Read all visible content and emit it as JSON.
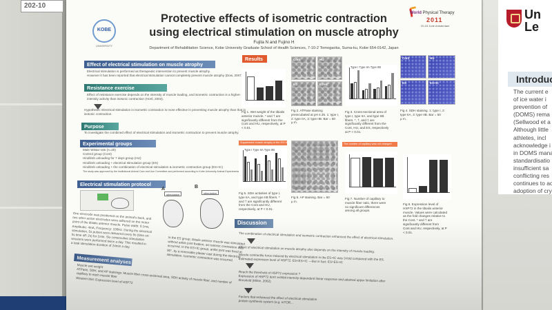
{
  "environment": {
    "corner_tag": "202-10",
    "right_poster": {
      "uni_name_lines": [
        "Un",
        "Le"
      ],
      "intro_heading": "Introduc",
      "intro_lines": [
        "The current e",
        "of ice water i",
        "prevention of",
        "(DOMS) rema",
        "(Sellwood et a",
        "Although little",
        "athletes, incl",
        "acknowledge i",
        "in DOMS mana",
        "standardisatio",
        "insufficient sa",
        "conflicting res",
        "continues to ac",
        "adoption of cry"
      ]
    }
  },
  "poster": {
    "title_line1": "Protective effects of isometric contraction",
    "title_line2": "using electrical stimulation on muscle atrophy",
    "authors": "Fujita N and Fujino H",
    "affiliation": "Department of Rehabilitation Science, Kobe University Graduate School of Health Sciences, 7-10-2 Tomogaoka, Suma-ku, Kobe 654-0142, Japan",
    "kobe_logo": {
      "text": "KOBE",
      "sub": "UNIVERSITY"
    },
    "wpt_logo": {
      "line1_bold": "World",
      "line1_rest": " Physical Therapy",
      "line2": "2011",
      "line3": "20-23 June Amsterdam"
    },
    "sections": {
      "effect_es": {
        "heading": "Effect of electrical stimulation on muscle atrophy",
        "lines": [
          "Electrical stimulation is performed as therapeutic intervention to prevent muscle atrophy.",
          "However it has been reported that electrical stimulation cannot completely prevent muscle atrophy (Dow, 2007)."
        ]
      },
      "resistance": {
        "heading": "Resistance exercise",
        "lines": [
          "Effect of resistance exercise depends on the intensity of muscle loading, and isometric contraction is a higher-",
          "intensity activity than isotonic contraction (Hortl, 2003)."
        ],
        "hypothesis": [
          "Hypothesis: Electrical stimulation in isometric contraction is more effective in preventing muscle atrophy than that in",
          "isotonic contraction."
        ]
      },
      "purpose": {
        "heading": "Purpose",
        "lines": [
          "To investigate the combined effect of electrical stimulation and isometric contraction to prevent muscle atrophy."
        ]
      },
      "groups": {
        "heading": "Experimental groups",
        "lines": [
          "Male Wistar rats (n=20)",
          "Control group (Cont)",
          "Hindlimb unloading for 7 days group (HU)",
          "Hindlimb unloading + electrical stimulation group (ES)",
          "Hindlimb unloading + the combination of electrical stimulation & isometric contraction group (ES+IC)",
          "The study was approved by the Institutional Animal Care and Use Committee and performed according to Kobe University Animal Experimentation Regulations."
        ]
      },
      "es_protocol": {
        "heading": "Electrical stimulation protocol",
        "left_text": [
          "One electrode was positioned on the animal's back, and",
          "two other active electrodes were adhered on the motor",
          "point of the tibialis anterior muscle. Pulse width: 0.1ms,",
          "Amplitude: 4mA, Frequency: 100Hz. During the electrical",
          "stimulation, 5s pulses were delivered every 5s (time on:",
          "5s time off: 2s) for 1min. Six consecutive stimulation",
          "sessions were performed twice a day. This resulted in",
          "a total stimulation duration of 24min a day."
        ],
        "label_a": "A",
        "label_b": "B",
        "box_a": "stimulation",
        "box_b": "stimulation",
        "right_text": [
          "In the ES group, tibialis anterior muscle was stimulated",
          "without ankle joint fixation, an isotonic contraction was",
          "occurred. In the ES+IC group, ankle joint was fixed at",
          "90°, by a removable plaster cast during the electrical",
          "stimulation. Isometric contraction was occurred."
        ]
      },
      "measurement": {
        "heading": "Measurement analyses",
        "lines": [
          "Muscle wet weight",
          "ATPase, SDH, and AP stainings: Muscle fiber cross-sectional area, SDH activity of muscle fiber, and number of",
          "capillary to each muscle fiber",
          "Western blot: Expression level of HSP72"
        ]
      },
      "results": {
        "heading": "Results",
        "figs": [
          {
            "caption": [
              "Fig 1. Wet weight of the tibialis",
              "anterior muscle. * and † are",
              "significantly different from the",
              "Cont and HU, respectively, at P",
              "< 0.01."
            ]
          },
          {
            "caption": [
              "Fig 2. ATPase staining",
              "preincubated at pH 4.35. 1: type I,",
              "2: type IIA, 3: type IIB. Bar = 50",
              "μ m."
            ],
            "labels": [
              "Cont",
              "HU",
              "ES",
              "ES+IC"
            ]
          },
          {
            "caption": [
              "Fig 3. Cross-sectional area of",
              "type I, type IIA, and type IIB",
              "fibers. *, †, and ‡ are",
              "significantly different from the",
              "Cont, HU, and ES, respectively",
              "at P < 0.01."
            ],
            "legend": "Type I  Type IIA  Type IIB"
          },
          {
            "caption": [
              "Fig 4. SDH staining. 1: type I, 2:",
              "type IIA, 3: type IIB. Bar = 50",
              "μ m."
            ],
            "labels": [
              "Cont",
              "HU",
              "ES",
              "ES+IC"
            ]
          },
          {
            "caption": [
              "Fig 5. SDH activities of type I,",
              "type IIA, and type IIB fibers. *",
              "and † are significantly different",
              "from the Cont and HU,",
              "respectively, at P < 0.01."
            ],
            "legend": "Type I  Type IIA  Type IIB"
          },
          {
            "caption": [
              "Fig 6. AP staining. Bar = 50",
              "μ m."
            ]
          },
          {
            "caption": [
              "Fig 7. Number of capillary to",
              "muscle fiber ratio, there were",
              "no significant differences",
              "among all groups."
            ]
          },
          {
            "caption": [
              "Fig 8. Expression level of",
              "HSP72 in the tibialis anterior",
              "muscle. Values were calculated",
              "as the fold changes relative to",
              "the Cont. * and † are",
              "significantly different from",
              "Cont and HU, respectively, at P",
              "< 0.01."
            ]
          }
        ],
        "orange_tags": [
          "Suppressed muscle atrophy in the ES+IC group",
          "The number of capillary was not changed"
        ]
      },
      "discussion": {
        "heading": "Discussion",
        "steps": [
          [
            "The combination of electrical stimulation and isometric contraction enhanced the effect of electrical stimulation."
          ],
          [
            "Effect of electrical stimulation on muscle atrophy also depends on the intensity of muscle loading."
          ],
          [
            "Muscle contractile force induced by electrical stimulation in the ES+IC was 3-fold compared with the ES.",
            "Estimated expression level of HSP72: ES<ES+IC ---But in fact: ES=ES+IC"
          ],
          [
            "Reach the threshold of HSP72 expression ?",
            "Expression of HSP72 don't exhibit intensity-dependent linear response and attained upper limitation after",
            "threshold (Milne, 2002)."
          ],
          [
            "Factors that enhanced the effect of electrical stimulation",
            "protein synthesis system (e.g. mTOR..."
          ]
        ]
      }
    }
  },
  "chart_data": [
    {
      "type": "bar",
      "title": "",
      "categories": [
        "Cont",
        "HU",
        "ES",
        "ES+IC"
      ],
      "values": [
        1.0,
        0.55,
        0.62,
        0.85
      ],
      "ylim": [
        0,
        1.1
      ]
    },
    {
      "type": "bar",
      "title": "",
      "categories": [
        "Cont",
        "HU",
        "ES",
        "ES+IC"
      ],
      "series": [
        {
          "name": "Type I",
          "values": [
            0.55,
            0.3,
            0.35,
            0.45
          ]
        },
        {
          "name": "Type IIA",
          "values": [
            0.6,
            0.35,
            0.4,
            0.5
          ]
        },
        {
          "name": "Type IIB",
          "values": [
            1.0,
            0.55,
            0.65,
            0.9
          ]
        }
      ]
    },
    {
      "type": "bar",
      "title": "",
      "categories": [
        "Cont",
        "HU",
        "ES",
        "ES+IC"
      ],
      "series": [
        {
          "name": "Type I",
          "values": [
            0.7,
            0.65,
            0.75,
            0.8
          ]
        },
        {
          "name": "Type IIA",
          "values": [
            0.55,
            0.5,
            0.6,
            0.65
          ]
        },
        {
          "name": "Type IIB",
          "values": [
            0.35,
            0.3,
            0.35,
            0.4
          ]
        }
      ]
    },
    {
      "type": "bar",
      "title": "",
      "categories": [
        "Cont",
        "HU",
        "ES",
        "ES+IC"
      ],
      "values": [
        0.7,
        0.72,
        0.69,
        0.71
      ]
    },
    {
      "type": "bar",
      "title": "",
      "categories": [
        "Cont",
        "HU",
        "ES",
        "ES+IC"
      ],
      "values": [
        0.15,
        0.2,
        1.0,
        1.0
      ]
    }
  ]
}
